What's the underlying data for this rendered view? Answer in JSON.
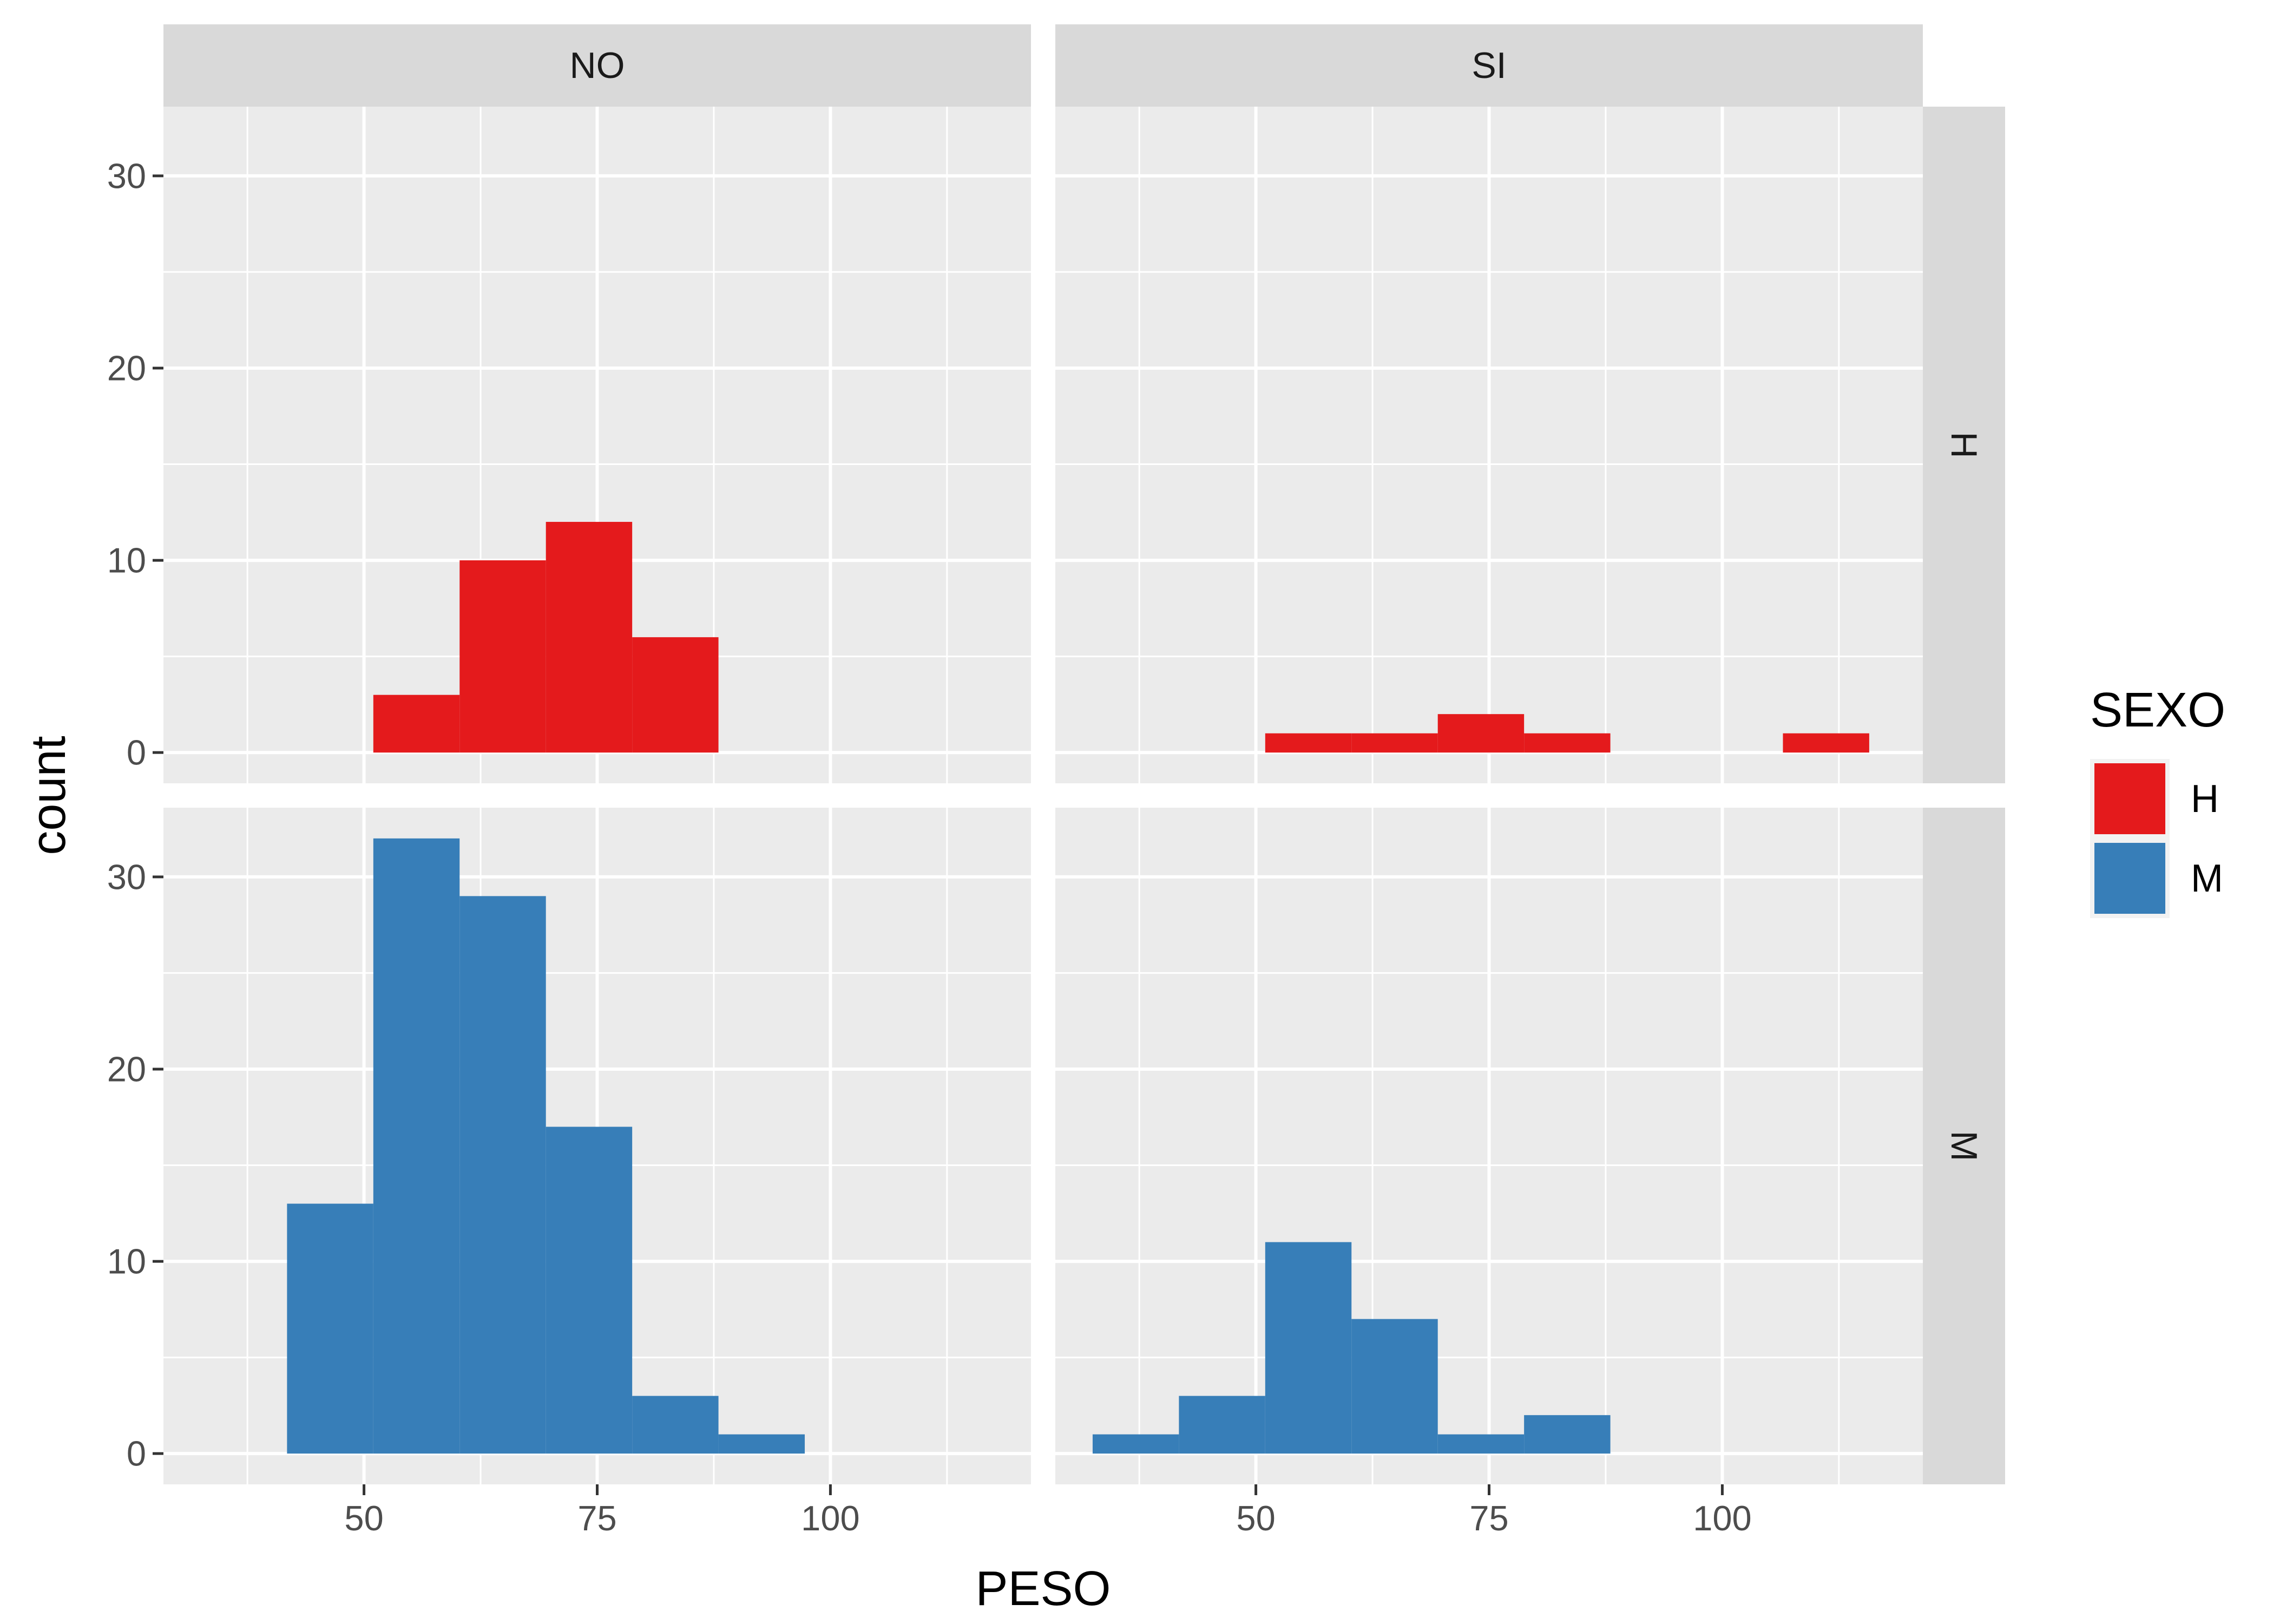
{
  "chart_data": {
    "type": "bar",
    "subtype": "faceted-histogram",
    "xlabel": "PESO",
    "ylabel": "count",
    "xlim": [
      28.5,
      121.5
    ],
    "ylim": [
      -1.6,
      33.6
    ],
    "x_ticks": [
      50,
      75,
      100
    ],
    "y_ticks": [
      0,
      10,
      20,
      30
    ],
    "grid": true,
    "bin_width": 9.25,
    "facet_columns": [
      "NO",
      "SI"
    ],
    "facet_rows": [
      "H",
      "M"
    ],
    "legend": {
      "title": "SEXO",
      "position": "right",
      "entries": [
        {
          "label": "H",
          "color": "#E41A1C"
        },
        {
          "label": "M",
          "color": "#377EB8"
        }
      ]
    },
    "panels": [
      {
        "column": "NO",
        "row": "H",
        "fill": "#E41A1C",
        "bins": [
          {
            "x_start": 51,
            "x_end": 60.25,
            "count": 3
          },
          {
            "x_start": 60.25,
            "x_end": 69.5,
            "count": 10
          },
          {
            "x_start": 69.5,
            "x_end": 78.75,
            "count": 12
          },
          {
            "x_start": 78.75,
            "x_end": 88,
            "count": 6
          }
        ]
      },
      {
        "column": "SI",
        "row": "H",
        "fill": "#E41A1C",
        "bins": [
          {
            "x_start": 51,
            "x_end": 60.25,
            "count": 1
          },
          {
            "x_start": 60.25,
            "x_end": 69.5,
            "count": 1
          },
          {
            "x_start": 69.5,
            "x_end": 78.75,
            "count": 2
          },
          {
            "x_start": 78.75,
            "x_end": 88,
            "count": 1
          },
          {
            "x_start": 106.5,
            "x_end": 115.75,
            "count": 1
          }
        ]
      },
      {
        "column": "NO",
        "row": "M",
        "fill": "#377EB8",
        "bins": [
          {
            "x_start": 41.75,
            "x_end": 51,
            "count": 13
          },
          {
            "x_start": 51,
            "x_end": 60.25,
            "count": 32
          },
          {
            "x_start": 60.25,
            "x_end": 69.5,
            "count": 29
          },
          {
            "x_start": 69.5,
            "x_end": 78.75,
            "count": 17
          },
          {
            "x_start": 78.75,
            "x_end": 88,
            "count": 3
          },
          {
            "x_start": 88,
            "x_end": 97.25,
            "count": 1
          }
        ]
      },
      {
        "column": "SI",
        "row": "M",
        "fill": "#377EB8",
        "bins": [
          {
            "x_start": 32.5,
            "x_end": 41.75,
            "count": 1
          },
          {
            "x_start": 41.75,
            "x_end": 51,
            "count": 3
          },
          {
            "x_start": 51,
            "x_end": 60.25,
            "count": 11
          },
          {
            "x_start": 60.25,
            "x_end": 69.5,
            "count": 7
          },
          {
            "x_start": 69.5,
            "x_end": 78.75,
            "count": 1
          },
          {
            "x_start": 78.75,
            "x_end": 88,
            "count": 2
          }
        ]
      }
    ]
  }
}
